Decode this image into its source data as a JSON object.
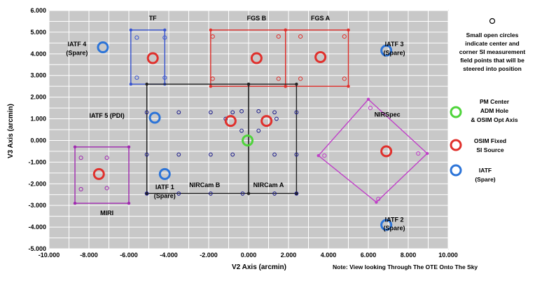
{
  "chart_data": {
    "type": "scatter",
    "xlabel": "V2 Axis (arcmin)",
    "ylabel": "V3 Axis (arcmin)",
    "xlim": [
      -10,
      10
    ],
    "ylim": [
      -5,
      6
    ],
    "x_ticks": [
      "-10.000",
      "-8.000",
      "-6.000",
      "-4.000",
      "-2.000",
      "0.000",
      "2.000",
      "4.000",
      "6.000",
      "8.000",
      "10.000"
    ],
    "y_ticks": [
      "6.000",
      "5.000",
      "4.000",
      "3.000",
      "2.000",
      "1.000",
      "0.000",
      "-1.000",
      "-2.000",
      "-3.000",
      "-4.000",
      "-5.000"
    ],
    "grid": true,
    "note": "Note:  View looking Through The OTE Onto The Sky",
    "instruments": [
      {
        "name": "TF",
        "color": "#3a56d0",
        "rect": [
          -5.9,
          2.6,
          -4.2,
          5.1
        ],
        "points": [
          [
            -5.6,
            4.75
          ],
          [
            -4.2,
            4.75
          ],
          [
            -5.6,
            2.9
          ],
          [
            -4.2,
            2.9
          ]
        ]
      },
      {
        "name": "FGS B",
        "color": "#e0302c",
        "rect": [
          -1.9,
          2.5,
          1.85,
          5.1
        ],
        "points": [
          [
            -1.8,
            4.8
          ],
          [
            1.5,
            4.8
          ],
          [
            -1.8,
            2.85
          ],
          [
            1.5,
            2.85
          ]
        ]
      },
      {
        "name": "FGS A",
        "color": "#e0302c",
        "rect": [
          1.85,
          2.5,
          5.0,
          5.1
        ],
        "points": [
          [
            2.6,
            4.8
          ],
          [
            4.8,
            4.8
          ],
          [
            2.6,
            2.85
          ],
          [
            4.8,
            2.85
          ]
        ]
      },
      {
        "name": "NIRCam B",
        "color": "#222222",
        "rect": [
          -5.1,
          -2.45,
          0.0,
          2.6
        ],
        "points": []
      },
      {
        "name": "NIRCam A",
        "color": "#222222",
        "rect": [
          0.0,
          -2.45,
          2.4,
          2.6
        ],
        "points": []
      },
      {
        "name": "MIRI",
        "color": "#a02ab0",
        "rect": [
          -8.7,
          -2.9,
          -6.0,
          -0.3
        ],
        "points": [
          [
            -8.4,
            -0.8
          ],
          [
            -7.1,
            -0.8
          ],
          [
            -8.4,
            -2.25
          ],
          [
            -7.1,
            -2.2
          ]
        ]
      },
      {
        "name": "NIRSpec",
        "color": "#c040c8",
        "diamond": [
          [
            6.0,
            1.9
          ],
          [
            8.95,
            -0.6
          ],
          [
            6.4,
            -2.85
          ],
          [
            3.5,
            -0.7
          ]
        ],
        "points": [
          [
            6.1,
            1.5
          ],
          [
            8.5,
            -0.6
          ],
          [
            6.5,
            -2.7
          ],
          [
            3.8,
            -0.7
          ]
        ]
      }
    ],
    "black_points": [
      [
        -5.1,
        1.3
      ],
      [
        -3.5,
        1.3
      ],
      [
        -1.9,
        1.3
      ],
      [
        -0.8,
        1.3
      ],
      [
        1.3,
        1.3
      ],
      [
        2.4,
        1.3
      ],
      [
        -5.1,
        -0.65
      ],
      [
        -3.5,
        -0.65
      ],
      [
        -1.9,
        -0.65
      ],
      [
        -0.8,
        -0.65
      ],
      [
        1.3,
        -0.65
      ],
      [
        2.4,
        -0.65
      ],
      [
        -5.1,
        -2.45
      ],
      [
        -3.5,
        -2.45
      ],
      [
        -1.9,
        -2.45
      ],
      [
        -0.3,
        -2.45
      ],
      [
        1.3,
        -2.45
      ],
      [
        2.4,
        -2.45
      ]
    ],
    "nircam_inner": [
      [
        -1.15,
        1.0
      ],
      [
        -0.35,
        1.35
      ],
      [
        0.5,
        1.35
      ],
      [
        1.4,
        1.0
      ],
      [
        -0.35,
        0.45
      ],
      [
        0.5,
        0.45
      ]
    ],
    "red_sources": [
      [
        -4.8,
        3.8
      ],
      [
        0.4,
        3.8
      ],
      [
        3.6,
        3.85
      ],
      [
        -0.9,
        0.9
      ],
      [
        0.9,
        0.9
      ],
      [
        -7.5,
        -1.55
      ],
      [
        6.9,
        -0.5
      ]
    ],
    "green_sources": [
      [
        -0.05,
        0.0
      ]
    ],
    "blue_sources": [
      [
        -7.3,
        4.3
      ],
      [
        -4.7,
        1.05
      ],
      [
        -4.2,
        -1.55
      ],
      [
        6.9,
        4.15
      ],
      [
        6.9,
        -3.9
      ]
    ],
    "labels": [
      {
        "text": "TF",
        "x": -4.8,
        "y": 5.55
      },
      {
        "text": "FGS B",
        "x": 0.4,
        "y": 5.55
      },
      {
        "text": "FGS A",
        "x": 3.6,
        "y": 5.55
      },
      {
        "text": "IATF 4",
        "x": -8.6,
        "y": 4.35
      },
      {
        "text": "(Spare)",
        "x": -8.6,
        "y": 3.95
      },
      {
        "text": "IATF 3",
        "x": 7.3,
        "y": 4.35
      },
      {
        "text": "(Spare)",
        "x": 7.3,
        "y": 3.95
      },
      {
        "text": "IATF 5 (PDI)",
        "x": -7.1,
        "y": 1.05
      },
      {
        "text": "NIRSpec",
        "x": 6.95,
        "y": 1.1
      },
      {
        "text": "NIRCam B",
        "x": -2.2,
        "y": -2.15
      },
      {
        "text": "NIRCam A",
        "x": 1.0,
        "y": -2.15
      },
      {
        "text": "IATF 1",
        "x": -4.2,
        "y": -2.25
      },
      {
        "text": "(Spare)",
        "x": -4.2,
        "y": -2.65
      },
      {
        "text": "MIRI",
        "x": -7.1,
        "y": -3.45
      },
      {
        "text": "IATF 2",
        "x": 7.3,
        "y": -3.75
      },
      {
        "text": "(Spare)",
        "x": 7.3,
        "y": -4.15
      }
    ]
  },
  "legend": {
    "open_circle_text": [
      "Small open circles",
      "indicate center and",
      "corner SI measurement",
      "field points that will be",
      "steered into position"
    ],
    "pm_center": [
      "PM Center",
      "ADM Hole",
      "& OSIM Opt Axis"
    ],
    "osim_fixed": [
      "OSIM Fixed",
      "SI Source"
    ],
    "iatf": [
      "IATF",
      "(Spare)"
    ]
  },
  "colors": {
    "plot_bg": "#c8c8c8",
    "grid": "#ffffff",
    "red": "#e0302c",
    "blue": "#2c74d8",
    "green": "#4ed43a"
  }
}
